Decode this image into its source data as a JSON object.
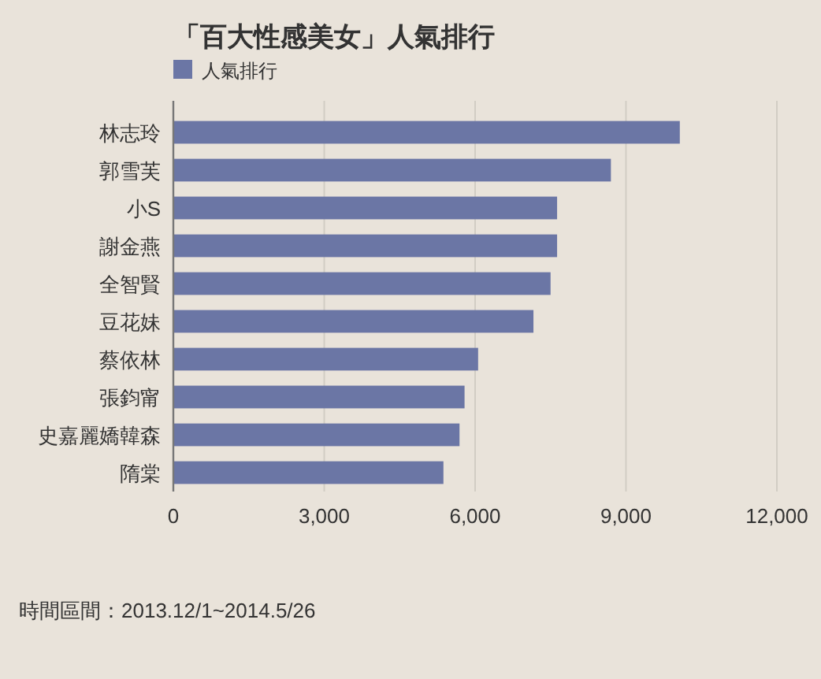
{
  "chart_data": {
    "type": "bar",
    "orientation": "horizontal",
    "title": "「百大性感美女」人氣排行",
    "categories": [
      "林志玲",
      "郭雪芙",
      "小S",
      "謝金燕",
      "全智賢",
      "豆花妹",
      "蔡依林",
      "張鈞甯",
      "史嘉麗嬌韓森",
      "隋棠"
    ],
    "series": [
      {
        "name": "人氣排行",
        "color": "#6b76a5",
        "values": [
          10070,
          8700,
          7630,
          7630,
          7500,
          7160,
          6060,
          5790,
          5690,
          5370
        ]
      }
    ],
    "xlim": [
      0,
      12000
    ],
    "xticks": [
      {
        "value": 0,
        "label": "0"
      },
      {
        "value": 3000,
        "label": "3,000"
      },
      {
        "value": 6000,
        "label": "6,000"
      },
      {
        "value": 9000,
        "label": "9,000"
      },
      {
        "value": 12000,
        "label": "12,000"
      }
    ],
    "grid": "x",
    "legend": "top left",
    "annotations": [
      "時間區間：2013.12/1~2014.5/26"
    ]
  }
}
